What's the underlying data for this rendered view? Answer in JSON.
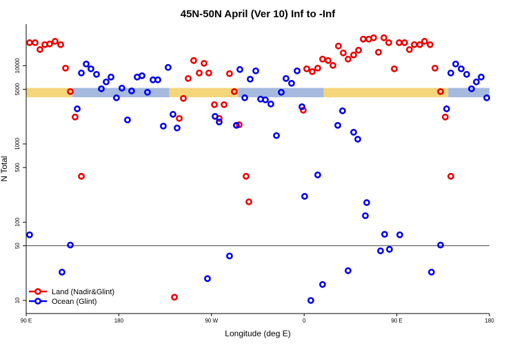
{
  "chart_data": {
    "type": "scatter",
    "title": "45N-50N April (Ver 10)   Inf to -Inf",
    "x_label": "Longitude (deg E)",
    "y_label": "N Total",
    "xlim": [
      90,
      540
    ],
    "xticks": [
      {
        "value": 90,
        "label": "90 E"
      },
      {
        "value": 180,
        "label": "180"
      },
      {
        "value": 270,
        "label": "90 W"
      },
      {
        "value": 360,
        "label": "0"
      },
      {
        "value": 450,
        "label": "90 E"
      },
      {
        "value": 540,
        "label": "180"
      }
    ],
    "ylim": [
      6.8,
      34000
    ],
    "yticks": [
      10,
      50,
      100,
      500,
      1000,
      5000,
      10000
    ],
    "log_y": true,
    "hline": 50,
    "legend": "bottom-left",
    "band": {
      "ylim": [
        3950,
        5200
      ],
      "segments": [
        {
          "xlim": [
            90,
            135
          ],
          "color": "#f5d67a"
        },
        {
          "xlim": [
            135,
            229
          ],
          "color": "#a6badf"
        },
        {
          "xlim": [
            229,
            296
          ],
          "color": "#f5d67a"
        },
        {
          "xlim": [
            296,
            379
          ],
          "color": "#a6badf"
        },
        {
          "xlim": [
            379,
            500
          ],
          "color": "#f5d67a"
        },
        {
          "xlim": [
            500,
            540
          ],
          "color": "#a6badf"
        }
      ]
    },
    "series": [
      {
        "name": "Land (Nadir&Glint)",
        "color": "#ee0000",
        "x": [
          93.3,
          98.7,
          103.4,
          108.1,
          112.8,
          118.1,
          123.5,
          128.2,
          132.9,
          137.5,
          143.6,
          234.0,
          238.7,
          242.7,
          247.4,
          252.7,
          258.1,
          262.8,
          267.4,
          272.8,
          277.5,
          282.2,
          287.5,
          292.2,
          296.9,
          303.6,
          306.3,
          359.2,
          362.5,
          367.9,
          373.2,
          377.9,
          383.3,
          388.0,
          393.3,
          398.0,
          402.7,
          408.1,
          412.8,
          417.4,
          422.8,
          427.5,
          432.2,
          437.5,
          442.2,
          447.6,
          452.3,
          457.6,
          462.3,
          467.0,
          472.4,
          477.0,
          482.4,
          487.1,
          492.5,
          497.1,
          502.5
        ],
        "values": [
          19700,
          19700,
          16100,
          18600,
          18970,
          20500,
          18600,
          9310,
          4670,
          2210,
          386,
          11,
          2120,
          3820,
          6870,
          11650,
          8070,
          10730,
          8070,
          3180,
          2120,
          3180,
          7920,
          4670,
          1760,
          386,
          182,
          2700,
          9120,
          8410,
          9310,
          12140,
          11650,
          10090,
          17830,
          14560,
          12140,
          13700,
          15790,
          21850,
          21850,
          22750,
          14860,
          22750,
          19700,
          9120,
          19700,
          19700,
          16100,
          18600,
          18600,
          20500,
          18600,
          9310,
          4670,
          2210,
          386
        ]
      },
      {
        "name": "Ocean (Glint)",
        "color": "#0000ee",
        "x": [
          93.3,
          124.8,
          132.9,
          139.6,
          143.6,
          148.3,
          152.9,
          158.3,
          163.0,
          167.7,
          172.4,
          177.7,
          183.0,
          188.4,
          192.4,
          197.8,
          202.5,
          207.8,
          213.2,
          217.9,
          223.2,
          227.9,
          232.6,
          236.6,
          266.1,
          273.5,
          277.5,
          287.5,
          294.2,
          297.6,
          302.3,
          307.6,
          313.0,
          317.7,
          322.4,
          327.7,
          333.1,
          337.8,
          342.4,
          347.8,
          353.2,
          357.9,
          360.5,
          366.5,
          373.2,
          377.9,
          392.7,
          397.3,
          402.7,
          408.1,
          412.1,
          419.5,
          420.8,
          434.2,
          438.2,
          442.9,
          452.9,
          483.7,
          492.5,
          498.4,
          502.5,
          507.2,
          512.6,
          517.9,
          522.6,
          527.3,
          532.0,
          537.4
        ],
        "values": [
          69,
          23,
          51,
          2810,
          8070,
          10510,
          9120,
          7760,
          5070,
          6210,
          7160,
          3890,
          5170,
          2030,
          4760,
          7160,
          7450,
          4580,
          6600,
          6600,
          1690,
          9510,
          2390,
          1600,
          19,
          2250,
          1910,
          37,
          1730,
          8950,
          3890,
          6730,
          8590,
          3740,
          3660,
          3240,
          1280,
          4580,
          6870,
          5960,
          8590,
          2990,
          214,
          10,
          402,
          16,
          1730,
          2650,
          24,
          1410,
          1150,
          121,
          178,
          43,
          70,
          45,
          69,
          23,
          51,
          2810,
          8070,
          10510,
          9120,
          7760,
          5070,
          6210,
          7160,
          3890
        ]
      }
    ]
  }
}
